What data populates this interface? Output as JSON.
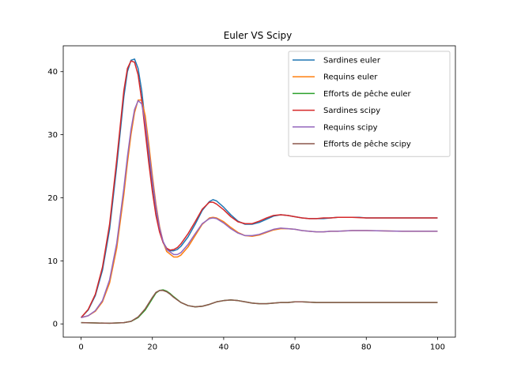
{
  "chart_data": {
    "type": "line",
    "title": "Euler VS Scipy",
    "xlabel": "",
    "ylabel": "",
    "xlim": [
      -5,
      105
    ],
    "ylim": [
      -2.1,
      44.1
    ],
    "xticks": [
      0,
      20,
      40,
      60,
      80,
      100
    ],
    "yticks": [
      0,
      10,
      20,
      30,
      40
    ],
    "grid": false,
    "legend_position": "top-right",
    "series": [
      {
        "name": "Sardines euler",
        "color": "#1f77b4",
        "points": [
          [
            0,
            1.0
          ],
          [
            2,
            2.2
          ],
          [
            4,
            4.5
          ],
          [
            6,
            8.5
          ],
          [
            8,
            15.0
          ],
          [
            10,
            25.0
          ],
          [
            12,
            36.0
          ],
          [
            13,
            40.0
          ],
          [
            14,
            41.8
          ],
          [
            15,
            42.0
          ],
          [
            16,
            40.5
          ],
          [
            17,
            37.0
          ],
          [
            18,
            32.0
          ],
          [
            19,
            26.5
          ],
          [
            20,
            21.5
          ],
          [
            21,
            17.5
          ],
          [
            22,
            14.8
          ],
          [
            23,
            13.0
          ],
          [
            24,
            12.0
          ],
          [
            25,
            11.6
          ],
          [
            26,
            11.6
          ],
          [
            27,
            11.8
          ],
          [
            28,
            12.3
          ],
          [
            30,
            13.8
          ],
          [
            32,
            15.8
          ],
          [
            34,
            18.0
          ],
          [
            36,
            19.4
          ],
          [
            37,
            19.7
          ],
          [
            38,
            19.5
          ],
          [
            40,
            18.5
          ],
          [
            42,
            17.3
          ],
          [
            44,
            16.3
          ],
          [
            46,
            15.8
          ],
          [
            48,
            15.8
          ],
          [
            50,
            16.1
          ],
          [
            52,
            16.6
          ],
          [
            54,
            17.1
          ],
          [
            56,
            17.3
          ],
          [
            58,
            17.2
          ],
          [
            60,
            17.0
          ],
          [
            62,
            16.8
          ],
          [
            64,
            16.7
          ],
          [
            66,
            16.7
          ],
          [
            68,
            16.7
          ],
          [
            70,
            16.8
          ],
          [
            72,
            16.9
          ],
          [
            74,
            16.9
          ],
          [
            76,
            16.9
          ],
          [
            78,
            16.9
          ],
          [
            80,
            16.8
          ],
          [
            84,
            16.8
          ],
          [
            90,
            16.8
          ],
          [
            100,
            16.8
          ]
        ]
      },
      {
        "name": "Requins euler",
        "color": "#ff7f0e",
        "points": [
          [
            0,
            1.0
          ],
          [
            2,
            1.3
          ],
          [
            4,
            2.0
          ],
          [
            6,
            3.5
          ],
          [
            8,
            6.5
          ],
          [
            10,
            12.0
          ],
          [
            12,
            20.5
          ],
          [
            13,
            25.5
          ],
          [
            14,
            30.0
          ],
          [
            15,
            33.5
          ],
          [
            16,
            35.5
          ],
          [
            17,
            35.5
          ],
          [
            18,
            33.0
          ],
          [
            19,
            28.5
          ],
          [
            20,
            23.5
          ],
          [
            21,
            19.0
          ],
          [
            22,
            15.5
          ],
          [
            23,
            13.0
          ],
          [
            24,
            11.5
          ],
          [
            26,
            10.6
          ],
          [
            27,
            10.6
          ],
          [
            28,
            10.9
          ],
          [
            30,
            12.2
          ],
          [
            32,
            14.0
          ],
          [
            34,
            15.8
          ],
          [
            36,
            16.8
          ],
          [
            37,
            16.9
          ],
          [
            38,
            16.8
          ],
          [
            40,
            16.2
          ],
          [
            42,
            15.3
          ],
          [
            44,
            14.5
          ],
          [
            46,
            14.0
          ],
          [
            48,
            13.9
          ],
          [
            50,
            14.1
          ],
          [
            52,
            14.5
          ],
          [
            54,
            14.9
          ],
          [
            56,
            15.1
          ],
          [
            58,
            15.1
          ],
          [
            60,
            15.0
          ],
          [
            62,
            14.8
          ],
          [
            64,
            14.7
          ],
          [
            66,
            14.6
          ],
          [
            68,
            14.6
          ],
          [
            70,
            14.7
          ],
          [
            72,
            14.7
          ],
          [
            76,
            14.8
          ],
          [
            80,
            14.8
          ],
          [
            90,
            14.7
          ],
          [
            100,
            14.7
          ]
        ]
      },
      {
        "name": "Efforts de pêche euler",
        "color": "#2ca02c",
        "points": [
          [
            0,
            0.2
          ],
          [
            4,
            0.15
          ],
          [
            8,
            0.1
          ],
          [
            12,
            0.2
          ],
          [
            14,
            0.4
          ],
          [
            16,
            1.0
          ],
          [
            18,
            2.2
          ],
          [
            20,
            4.0
          ],
          [
            21,
            4.9
          ],
          [
            22,
            5.3
          ],
          [
            23,
            5.4
          ],
          [
            24,
            5.2
          ],
          [
            25,
            4.8
          ],
          [
            26,
            4.3
          ],
          [
            28,
            3.4
          ],
          [
            30,
            2.9
          ],
          [
            32,
            2.7
          ],
          [
            34,
            2.8
          ],
          [
            36,
            3.1
          ],
          [
            38,
            3.5
          ],
          [
            40,
            3.7
          ],
          [
            42,
            3.8
          ],
          [
            44,
            3.7
          ],
          [
            46,
            3.5
          ],
          [
            48,
            3.3
          ],
          [
            50,
            3.2
          ],
          [
            52,
            3.2
          ],
          [
            54,
            3.3
          ],
          [
            56,
            3.4
          ],
          [
            58,
            3.4
          ],
          [
            60,
            3.5
          ],
          [
            62,
            3.5
          ],
          [
            66,
            3.4
          ],
          [
            70,
            3.4
          ],
          [
            80,
            3.4
          ],
          [
            90,
            3.4
          ],
          [
            100,
            3.4
          ]
        ]
      },
      {
        "name": "Sardines scipy",
        "color": "#d62728",
        "points": [
          [
            0,
            1.0
          ],
          [
            2,
            2.3
          ],
          [
            4,
            4.7
          ],
          [
            6,
            9.0
          ],
          [
            8,
            15.8
          ],
          [
            10,
            26.0
          ],
          [
            12,
            37.0
          ],
          [
            13,
            40.5
          ],
          [
            14,
            41.7
          ],
          [
            15,
            41.5
          ],
          [
            16,
            39.5
          ],
          [
            17,
            35.5
          ],
          [
            18,
            30.5
          ],
          [
            19,
            25.5
          ],
          [
            20,
            21.0
          ],
          [
            21,
            17.2
          ],
          [
            22,
            14.6
          ],
          [
            23,
            12.9
          ],
          [
            24,
            12.0
          ],
          [
            25,
            11.7
          ],
          [
            26,
            11.8
          ],
          [
            27,
            12.1
          ],
          [
            28,
            12.7
          ],
          [
            30,
            14.3
          ],
          [
            32,
            16.2
          ],
          [
            34,
            18.2
          ],
          [
            36,
            19.3
          ],
          [
            37,
            19.3
          ],
          [
            38,
            19.0
          ],
          [
            40,
            18.1
          ],
          [
            42,
            17.0
          ],
          [
            44,
            16.2
          ],
          [
            46,
            15.9
          ],
          [
            48,
            15.9
          ],
          [
            50,
            16.3
          ],
          [
            52,
            16.8
          ],
          [
            54,
            17.2
          ],
          [
            56,
            17.3
          ],
          [
            58,
            17.2
          ],
          [
            60,
            17.0
          ],
          [
            62,
            16.8
          ],
          [
            64,
            16.7
          ],
          [
            66,
            16.7
          ],
          [
            68,
            16.8
          ],
          [
            70,
            16.8
          ],
          [
            72,
            16.9
          ],
          [
            76,
            16.9
          ],
          [
            80,
            16.8
          ],
          [
            90,
            16.8
          ],
          [
            100,
            16.8
          ]
        ]
      },
      {
        "name": "Requins scipy",
        "color": "#9467bd",
        "points": [
          [
            0,
            1.0
          ],
          [
            2,
            1.3
          ],
          [
            4,
            2.1
          ],
          [
            6,
            3.7
          ],
          [
            8,
            7.0
          ],
          [
            10,
            12.8
          ],
          [
            12,
            21.5
          ],
          [
            13,
            26.5
          ],
          [
            14,
            30.8
          ],
          [
            15,
            34.0
          ],
          [
            16,
            35.4
          ],
          [
            17,
            34.9
          ],
          [
            18,
            32.0
          ],
          [
            19,
            27.5
          ],
          [
            20,
            22.8
          ],
          [
            21,
            18.6
          ],
          [
            22,
            15.3
          ],
          [
            23,
            13.1
          ],
          [
            24,
            11.8
          ],
          [
            26,
            11.0
          ],
          [
            27,
            11.0
          ],
          [
            28,
            11.3
          ],
          [
            30,
            12.6
          ],
          [
            32,
            14.3
          ],
          [
            34,
            15.9
          ],
          [
            36,
            16.7
          ],
          [
            37,
            16.8
          ],
          [
            38,
            16.7
          ],
          [
            40,
            16.0
          ],
          [
            42,
            15.1
          ],
          [
            44,
            14.4
          ],
          [
            46,
            14.0
          ],
          [
            48,
            14.0
          ],
          [
            50,
            14.2
          ],
          [
            52,
            14.6
          ],
          [
            54,
            15.0
          ],
          [
            56,
            15.2
          ],
          [
            58,
            15.1
          ],
          [
            60,
            15.0
          ],
          [
            62,
            14.8
          ],
          [
            64,
            14.7
          ],
          [
            66,
            14.6
          ],
          [
            68,
            14.6
          ],
          [
            70,
            14.7
          ],
          [
            72,
            14.7
          ],
          [
            76,
            14.8
          ],
          [
            80,
            14.8
          ],
          [
            90,
            14.7
          ],
          [
            100,
            14.7
          ]
        ]
      },
      {
        "name": "Efforts de pêche scipy",
        "color": "#8c564b",
        "points": [
          [
            0,
            0.2
          ],
          [
            4,
            0.15
          ],
          [
            8,
            0.1
          ],
          [
            12,
            0.2
          ],
          [
            14,
            0.4
          ],
          [
            16,
            1.1
          ],
          [
            18,
            2.4
          ],
          [
            20,
            4.2
          ],
          [
            21,
            5.0
          ],
          [
            22,
            5.3
          ],
          [
            23,
            5.3
          ],
          [
            24,
            5.1
          ],
          [
            25,
            4.7
          ],
          [
            26,
            4.2
          ],
          [
            28,
            3.4
          ],
          [
            30,
            2.9
          ],
          [
            32,
            2.7
          ],
          [
            34,
            2.8
          ],
          [
            36,
            3.1
          ],
          [
            38,
            3.5
          ],
          [
            40,
            3.7
          ],
          [
            42,
            3.8
          ],
          [
            44,
            3.7
          ],
          [
            46,
            3.5
          ],
          [
            48,
            3.3
          ],
          [
            50,
            3.2
          ],
          [
            52,
            3.2
          ],
          [
            54,
            3.3
          ],
          [
            56,
            3.4
          ],
          [
            58,
            3.4
          ],
          [
            60,
            3.5
          ],
          [
            62,
            3.5
          ],
          [
            66,
            3.4
          ],
          [
            70,
            3.4
          ],
          [
            80,
            3.4
          ],
          [
            90,
            3.4
          ],
          [
            100,
            3.4
          ]
        ]
      }
    ]
  }
}
